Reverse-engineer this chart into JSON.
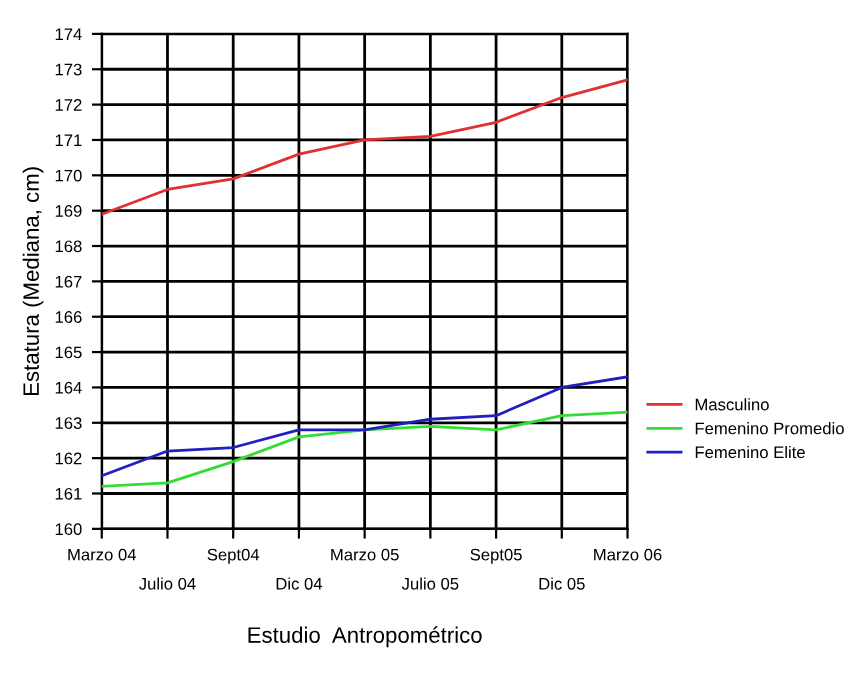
{
  "chart_data": {
    "type": "line",
    "xlabel": "Estudio  Antropométrico",
    "ylabel": "Estatura (Mediana, cm)",
    "categories": [
      "Marzo 04",
      "Julio 04",
      "Sept04",
      "Dic 04",
      "Marzo 05",
      "Julio 05",
      "Sept05",
      "Dic 05",
      "Marzo 06"
    ],
    "series": [
      {
        "name": "Masculino",
        "color": "#e03030",
        "values": [
          168.9,
          169.6,
          169.9,
          170.6,
          171.0,
          171.1,
          171.5,
          172.2,
          172.7
        ]
      },
      {
        "name": "Femenino Promedio",
        "color": "#33dd33",
        "values": [
          161.2,
          161.3,
          161.9,
          162.6,
          162.8,
          162.9,
          162.8,
          163.2,
          163.3
        ]
      },
      {
        "name": "Femenino Elite",
        "color": "#2020c0",
        "values": [
          161.5,
          162.2,
          162.3,
          162.8,
          162.8,
          163.1,
          163.2,
          164.0,
          164.3
        ]
      }
    ],
    "ylim": [
      160,
      174
    ],
    "yticks": [
      160,
      161,
      162,
      163,
      164,
      165,
      166,
      167,
      168,
      169,
      170,
      171,
      172,
      173,
      174
    ],
    "grid": true,
    "legend": "right",
    "marker": "none",
    "line_style": "solid"
  }
}
